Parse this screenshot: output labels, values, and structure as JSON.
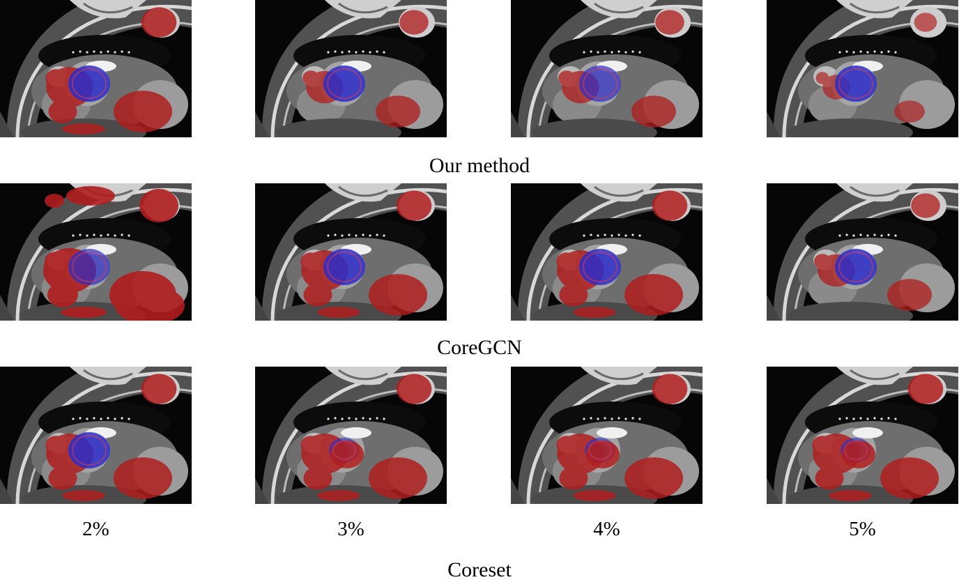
{
  "row_captions": [
    "Our method",
    "CoreGCN",
    "Coreset"
  ],
  "column_labels": [
    "2%",
    "3%",
    "4%",
    "5%"
  ],
  "colors": {
    "background_class": "#b01e1e",
    "foreground_class": "#2d2dc8",
    "scan_gray": "#8c8c8c"
  },
  "panels": [
    {
      "row": 0,
      "col": 0,
      "red": "heavy",
      "blue": "full"
    },
    {
      "row": 0,
      "col": 1,
      "red": "moderate",
      "blue": "full"
    },
    {
      "row": 0,
      "col": 2,
      "red": "moderate",
      "blue": "partial"
    },
    {
      "row": 0,
      "col": 3,
      "red": "light",
      "blue": "full"
    },
    {
      "row": 1,
      "col": 0,
      "red": "very-heavy",
      "blue": "partial"
    },
    {
      "row": 1,
      "col": 1,
      "red": "heavy",
      "blue": "full"
    },
    {
      "row": 1,
      "col": 2,
      "red": "heavy",
      "blue": "full"
    },
    {
      "row": 1,
      "col": 3,
      "red": "moderate",
      "blue": "full"
    },
    {
      "row": 2,
      "col": 0,
      "red": "heavy",
      "blue": "full"
    },
    {
      "row": 2,
      "col": 1,
      "red": "heavy",
      "blue": "thin"
    },
    {
      "row": 2,
      "col": 2,
      "red": "heavy",
      "blue": "thin"
    },
    {
      "row": 2,
      "col": 3,
      "red": "heavy",
      "blue": "thin"
    }
  ]
}
